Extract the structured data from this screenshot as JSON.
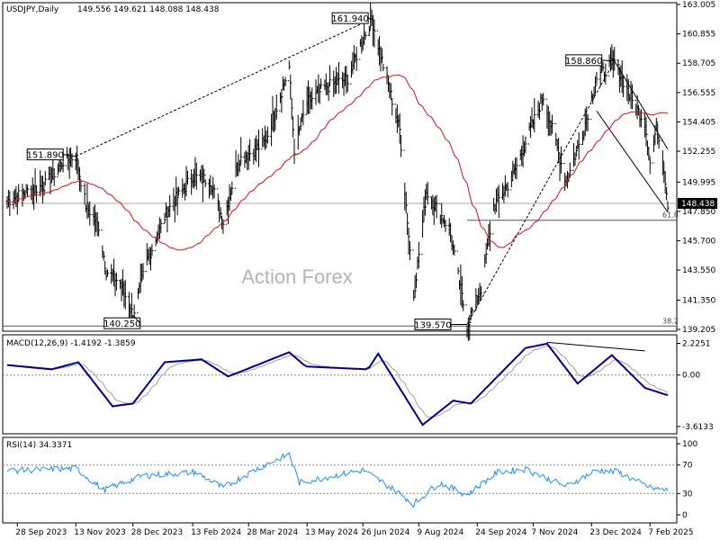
{
  "chart_data": [
    {
      "type": "candlestick",
      "title": "USDJPY,Daily",
      "ohlc": "149.556 149.621 148.088 148.438",
      "watermark": "Action Forex",
      "current_price": "148.438",
      "y_ticks": [
        "163.005",
        "160.855",
        "158.705",
        "156.555",
        "154.405",
        "152.255",
        "149.995",
        "147.850",
        "145.700",
        "143.550",
        "141.350",
        "139.205"
      ],
      "ylim": [
        139.205,
        163.005
      ],
      "x_ticks": [
        "28 Sep 2023",
        "13 Nov 2023",
        "28 Dec 2023",
        "13 Feb 2024",
        "28 Mar 2024",
        "13 May 2024",
        "26 Jun 2024",
        "9 Aug 2024",
        "24 Sep 2024",
        "7 Nov 2024",
        "23 Dec 2024",
        "7 Feb 2025"
      ],
      "x_range": [
        "2023-09-20",
        "2025-02-21"
      ],
      "series": [
        {
          "name": "",
          "close_anchors": [
            [
              "2023-09-20",
              148.6
            ],
            [
              "2023-10-05",
              149.3
            ],
            [
              "2023-10-20",
              149.8
            ],
            [
              "2023-11-03",
              151.5
            ],
            [
              "2023-11-13",
              151.89
            ],
            [
              "2023-11-21",
              148.3
            ],
            [
              "2023-12-01",
              146.8
            ],
            [
              "2023-12-07",
              143.5
            ],
            [
              "2023-12-18",
              142.6
            ],
            [
              "2023-12-28",
              140.25
            ],
            [
              "2024-01-08",
              144.2
            ],
            [
              "2024-01-24",
              147.9
            ],
            [
              "2024-02-13",
              150.4
            ],
            [
              "2024-02-27",
              150.1
            ],
            [
              "2024-03-08",
              147.1
            ],
            [
              "2024-03-20",
              151.6
            ],
            [
              "2024-04-10",
              152.9
            ],
            [
              "2024-04-29",
              158.4
            ],
            [
              "2024-05-03",
              152.4
            ],
            [
              "2024-05-13",
              155.8
            ],
            [
              "2024-05-27",
              156.9
            ],
            [
              "2024-06-14",
              157.6
            ],
            [
              "2024-06-26",
              160.5
            ],
            [
              "2024-07-03",
              161.94
            ],
            [
              "2024-07-11",
              158.9
            ],
            [
              "2024-07-25",
              153.8
            ],
            [
              "2024-08-05",
              141.7
            ],
            [
              "2024-08-15",
              149.3
            ],
            [
              "2024-09-02",
              146.6
            ],
            [
              "2024-09-16",
              139.57
            ],
            [
              "2024-09-27",
              142.2
            ],
            [
              "2024-10-07",
              148.2
            ],
            [
              "2024-10-21",
              150.2
            ],
            [
              "2024-11-01",
              152.9
            ],
            [
              "2024-11-15",
              156.3
            ],
            [
              "2024-12-03",
              150.0
            ],
            [
              "2024-12-16",
              153.6
            ],
            [
              "2024-12-27",
              157.6
            ],
            [
              "2025-01-10",
              158.86
            ],
            [
              "2025-01-24",
              155.9
            ],
            [
              "2025-02-03",
              154.4
            ],
            [
              "2025-02-07",
              151.4
            ],
            [
              "2025-02-12",
              154.0
            ],
            [
              "2025-02-17",
              151.9
            ],
            [
              "2025-02-21",
              148.438
            ]
          ]
        }
      ],
      "annotations": [
        {
          "label": "161.940",
          "date": "2024-07-03",
          "price": 161.94
        },
        {
          "label": "151.890",
          "date": "2023-11-13",
          "price": 151.89
        },
        {
          "label": "140.250",
          "date": "2023-12-28",
          "price": 140.25
        },
        {
          "label": "139.570",
          "date": "2024-09-16",
          "price": 139.57
        },
        {
          "label": "158.860",
          "date": "2025-01-10",
          "price": 158.86
        }
      ],
      "fib_labels": [
        "61.8",
        "38.2"
      ],
      "lines": {
        "fib_618_price": 147.2,
        "fib_382_price": 139.45,
        "current_line_price": 148.438
      }
    },
    {
      "type": "line",
      "title": "MACD(12,26,9) -1.4192 -1.3859",
      "y_ticks": [
        "2.2251",
        "0.00",
        "-3.6133"
      ],
      "ylim": [
        -4.0,
        2.7
      ],
      "series": [
        {
          "name": "",
          "values_anchors": [
            [
              "2023-09-20",
              0.7
            ],
            [
              "2023-10-25",
              0.4
            ],
            [
              "2023-11-15",
              0.9
            ],
            [
              "2023-12-12",
              -2.2
            ],
            [
              "2023-12-28",
              -2.0
            ],
            [
              "2024-01-22",
              0.9
            ],
            [
              "2024-02-20",
              1.1
            ],
            [
              "2024-03-12",
              -0.1
            ],
            [
              "2024-04-29",
              1.6
            ],
            [
              "2024-05-12",
              0.6
            ],
            [
              "2024-06-30",
              0.4
            ],
            [
              "2024-07-08",
              1.5
            ],
            [
              "2024-08-12",
              -3.5
            ],
            [
              "2024-09-05",
              -1.8
            ],
            [
              "2024-09-19",
              -2.0
            ],
            [
              "2024-11-01",
              1.9
            ],
            [
              "2024-11-18",
              2.2
            ],
            [
              "2024-12-12",
              -0.6
            ],
            [
              "2025-01-08",
              1.4
            ],
            [
              "2025-02-03",
              -0.9
            ],
            [
              "2025-02-21",
              -1.42
            ]
          ]
        }
      ]
    },
    {
      "type": "line",
      "title": "RSI(14) 34.3371",
      "y_ticks": [
        "100",
        "70",
        "30",
        "0"
      ],
      "ylim": [
        0,
        100
      ],
      "series": [
        {
          "name": "",
          "values_anchors": [
            [
              "2023-09-20",
              62
            ],
            [
              "2023-11-13",
              65
            ],
            [
              "2023-12-05",
              35
            ],
            [
              "2024-01-05",
              55
            ],
            [
              "2024-02-15",
              60
            ],
            [
              "2024-03-08",
              38
            ],
            [
              "2024-04-05",
              66
            ],
            [
              "2024-04-29",
              85
            ],
            [
              "2024-05-07",
              45
            ],
            [
              "2024-06-26",
              63
            ],
            [
              "2024-07-25",
              30
            ],
            [
              "2024-08-05",
              15
            ],
            [
              "2024-08-25",
              45
            ],
            [
              "2024-09-16",
              28
            ],
            [
              "2024-10-10",
              60
            ],
            [
              "2024-11-01",
              64
            ],
            [
              "2024-12-03",
              40
            ],
            [
              "2024-12-27",
              63
            ],
            [
              "2025-01-13",
              60
            ],
            [
              "2025-02-07",
              38
            ],
            [
              "2025-02-21",
              34.3
            ]
          ]
        }
      ]
    }
  ]
}
